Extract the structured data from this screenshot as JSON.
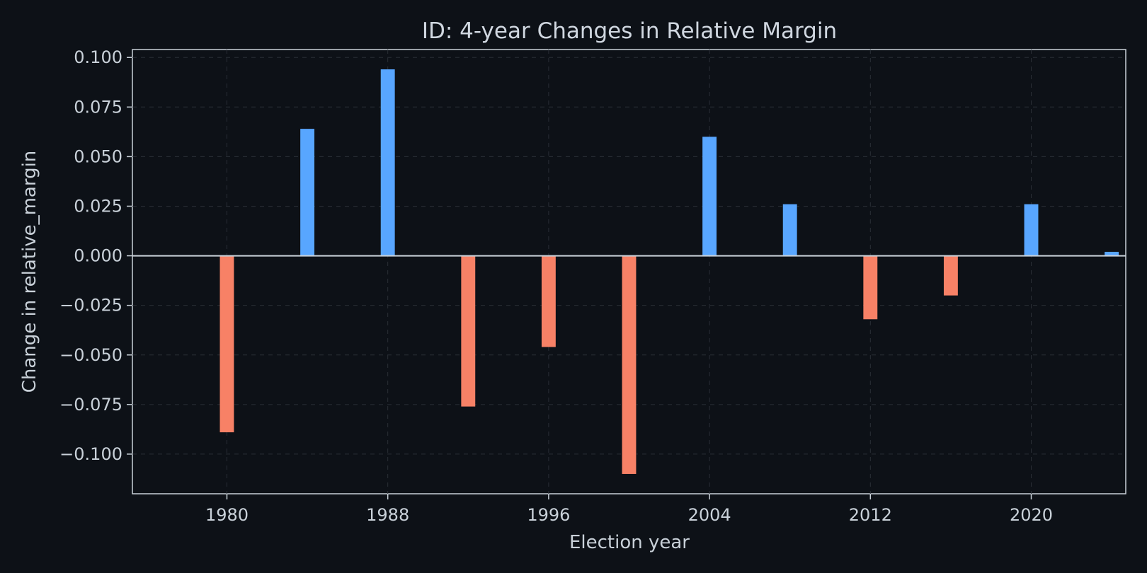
{
  "chart_data": {
    "type": "bar",
    "title": "ID: 4-year Changes in Relative Margin",
    "xlabel": "Election year",
    "ylabel": "Change in relative_margin",
    "x": [
      1980,
      1984,
      1988,
      1992,
      1996,
      2000,
      2004,
      2008,
      2012,
      2016,
      2020,
      2024
    ],
    "values": [
      -0.089,
      0.064,
      0.094,
      -0.076,
      -0.046,
      -0.11,
      0.06,
      0.026,
      -0.032,
      -0.02,
      0.026,
      0.002
    ],
    "xlim": [
      1975.3,
      2024.7
    ],
    "ylim": [
      -0.12,
      0.104
    ],
    "x_ticks": [
      1980,
      1988,
      1996,
      2004,
      2012,
      2020
    ],
    "y_ticks": [
      0.1,
      0.075,
      0.05,
      0.025,
      0.0,
      -0.025,
      -0.05,
      -0.075,
      -0.1
    ],
    "y_tick_labels": [
      "0.100",
      "0.075",
      "0.050",
      "0.025",
      "0.000",
      "−0.025",
      "−0.050",
      "−0.075",
      "−0.100"
    ],
    "bar_width_years": 0.7,
    "grid": true,
    "colors": {
      "positive": "#58a6ff",
      "negative": "#f78166",
      "background": "#0d1117",
      "text": "#c9d1d9"
    }
  }
}
